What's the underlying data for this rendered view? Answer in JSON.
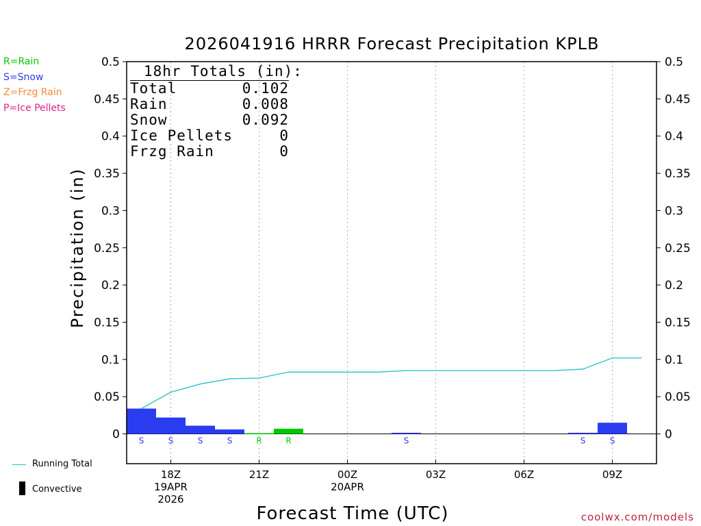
{
  "colors": {
    "rain": "#00c800",
    "snow": "#2a3cf0",
    "frzg_rain": "#f08a3c",
    "ice_pellets": "#e0208c",
    "running_total": "#20c0c8",
    "convective": "#000000",
    "credit": "#c0203c"
  },
  "legend": {
    "rain": "R=Rain",
    "snow": "S=Snow",
    "frzg_rain": "Z=Frzg Rain",
    "ice_pellets": "P=Ice Pellets",
    "running_total": "Running Total",
    "convective": "Convective"
  },
  "totals": {
    "title": "18hr Totals (in):",
    "rows": [
      {
        "label": "Total",
        "value": "0.102"
      },
      {
        "label": "Rain",
        "value": "0.008"
      },
      {
        "label": "Snow",
        "value": "0.092"
      },
      {
        "label": "Ice Pellets",
        "value": "0"
      },
      {
        "label": "Frzg Rain",
        "value": "0"
      }
    ]
  },
  "credit": "coolwx.com/models",
  "chart_data": {
    "type": "bar",
    "title": "2026041916 HRRR Forecast Precipitation KPLB",
    "xlabel": "Forecast Time (UTC)",
    "ylabel": "Precipitation (in)",
    "ylim": [
      -0.04,
      0.5
    ],
    "yticks": [
      0,
      0.05,
      0.1,
      0.15,
      0.2,
      0.25,
      0.3,
      0.35,
      0.4,
      0.45,
      0.5
    ],
    "ytick_labels": [
      "0",
      "0.05",
      "0.1",
      "0.15",
      "0.2",
      "0.25",
      "0.3",
      "0.35",
      "0.4",
      "0.45",
      "0.5"
    ],
    "xlim": [
      16.5,
      34.5
    ],
    "xticks": [
      {
        "hour": 18,
        "lines": [
          "18Z",
          "19APR",
          "2026"
        ]
      },
      {
        "hour": 21,
        "lines": [
          "21Z"
        ]
      },
      {
        "hour": 24,
        "lines": [
          "00Z",
          "20APR"
        ]
      },
      {
        "hour": 27,
        "lines": [
          "03Z"
        ]
      },
      {
        "hour": 30,
        "lines": [
          "06Z"
        ]
      },
      {
        "hour": 33,
        "lines": [
          "09Z"
        ]
      }
    ],
    "grid": "vertical dotted at x ticks",
    "bars": [
      {
        "hour": 17,
        "value": 0.034,
        "type": "S"
      },
      {
        "hour": 18,
        "value": 0.022,
        "type": "S"
      },
      {
        "hour": 19,
        "value": 0.011,
        "type": "S"
      },
      {
        "hour": 20,
        "value": 0.006,
        "type": "S"
      },
      {
        "hour": 21,
        "value": 0.001,
        "type": "R"
      },
      {
        "hour": 22,
        "value": 0.007,
        "type": "R"
      },
      {
        "hour": 23,
        "value": 0.0,
        "type": ""
      },
      {
        "hour": 24,
        "value": 0.0,
        "type": ""
      },
      {
        "hour": 25,
        "value": 0.0,
        "type": ""
      },
      {
        "hour": 26,
        "value": 0.0015,
        "type": "S"
      },
      {
        "hour": 27,
        "value": 0.0,
        "type": ""
      },
      {
        "hour": 28,
        "value": 0.0,
        "type": ""
      },
      {
        "hour": 29,
        "value": 0.0,
        "type": ""
      },
      {
        "hour": 30,
        "value": 0.0,
        "type": ""
      },
      {
        "hour": 31,
        "value": 0.0,
        "type": ""
      },
      {
        "hour": 32,
        "value": 0.0015,
        "type": "S"
      },
      {
        "hour": 33,
        "value": 0.015,
        "type": "S"
      }
    ],
    "running_total": {
      "x": [
        17,
        18,
        19,
        20,
        21,
        22,
        23,
        24,
        25,
        26,
        27,
        28,
        29,
        30,
        31,
        32,
        33,
        34
      ],
      "y": [
        0.034,
        0.056,
        0.067,
        0.074,
        0.075,
        0.083,
        0.083,
        0.083,
        0.083,
        0.085,
        0.085,
        0.085,
        0.085,
        0.085,
        0.085,
        0.087,
        0.102,
        0.102
      ]
    }
  }
}
